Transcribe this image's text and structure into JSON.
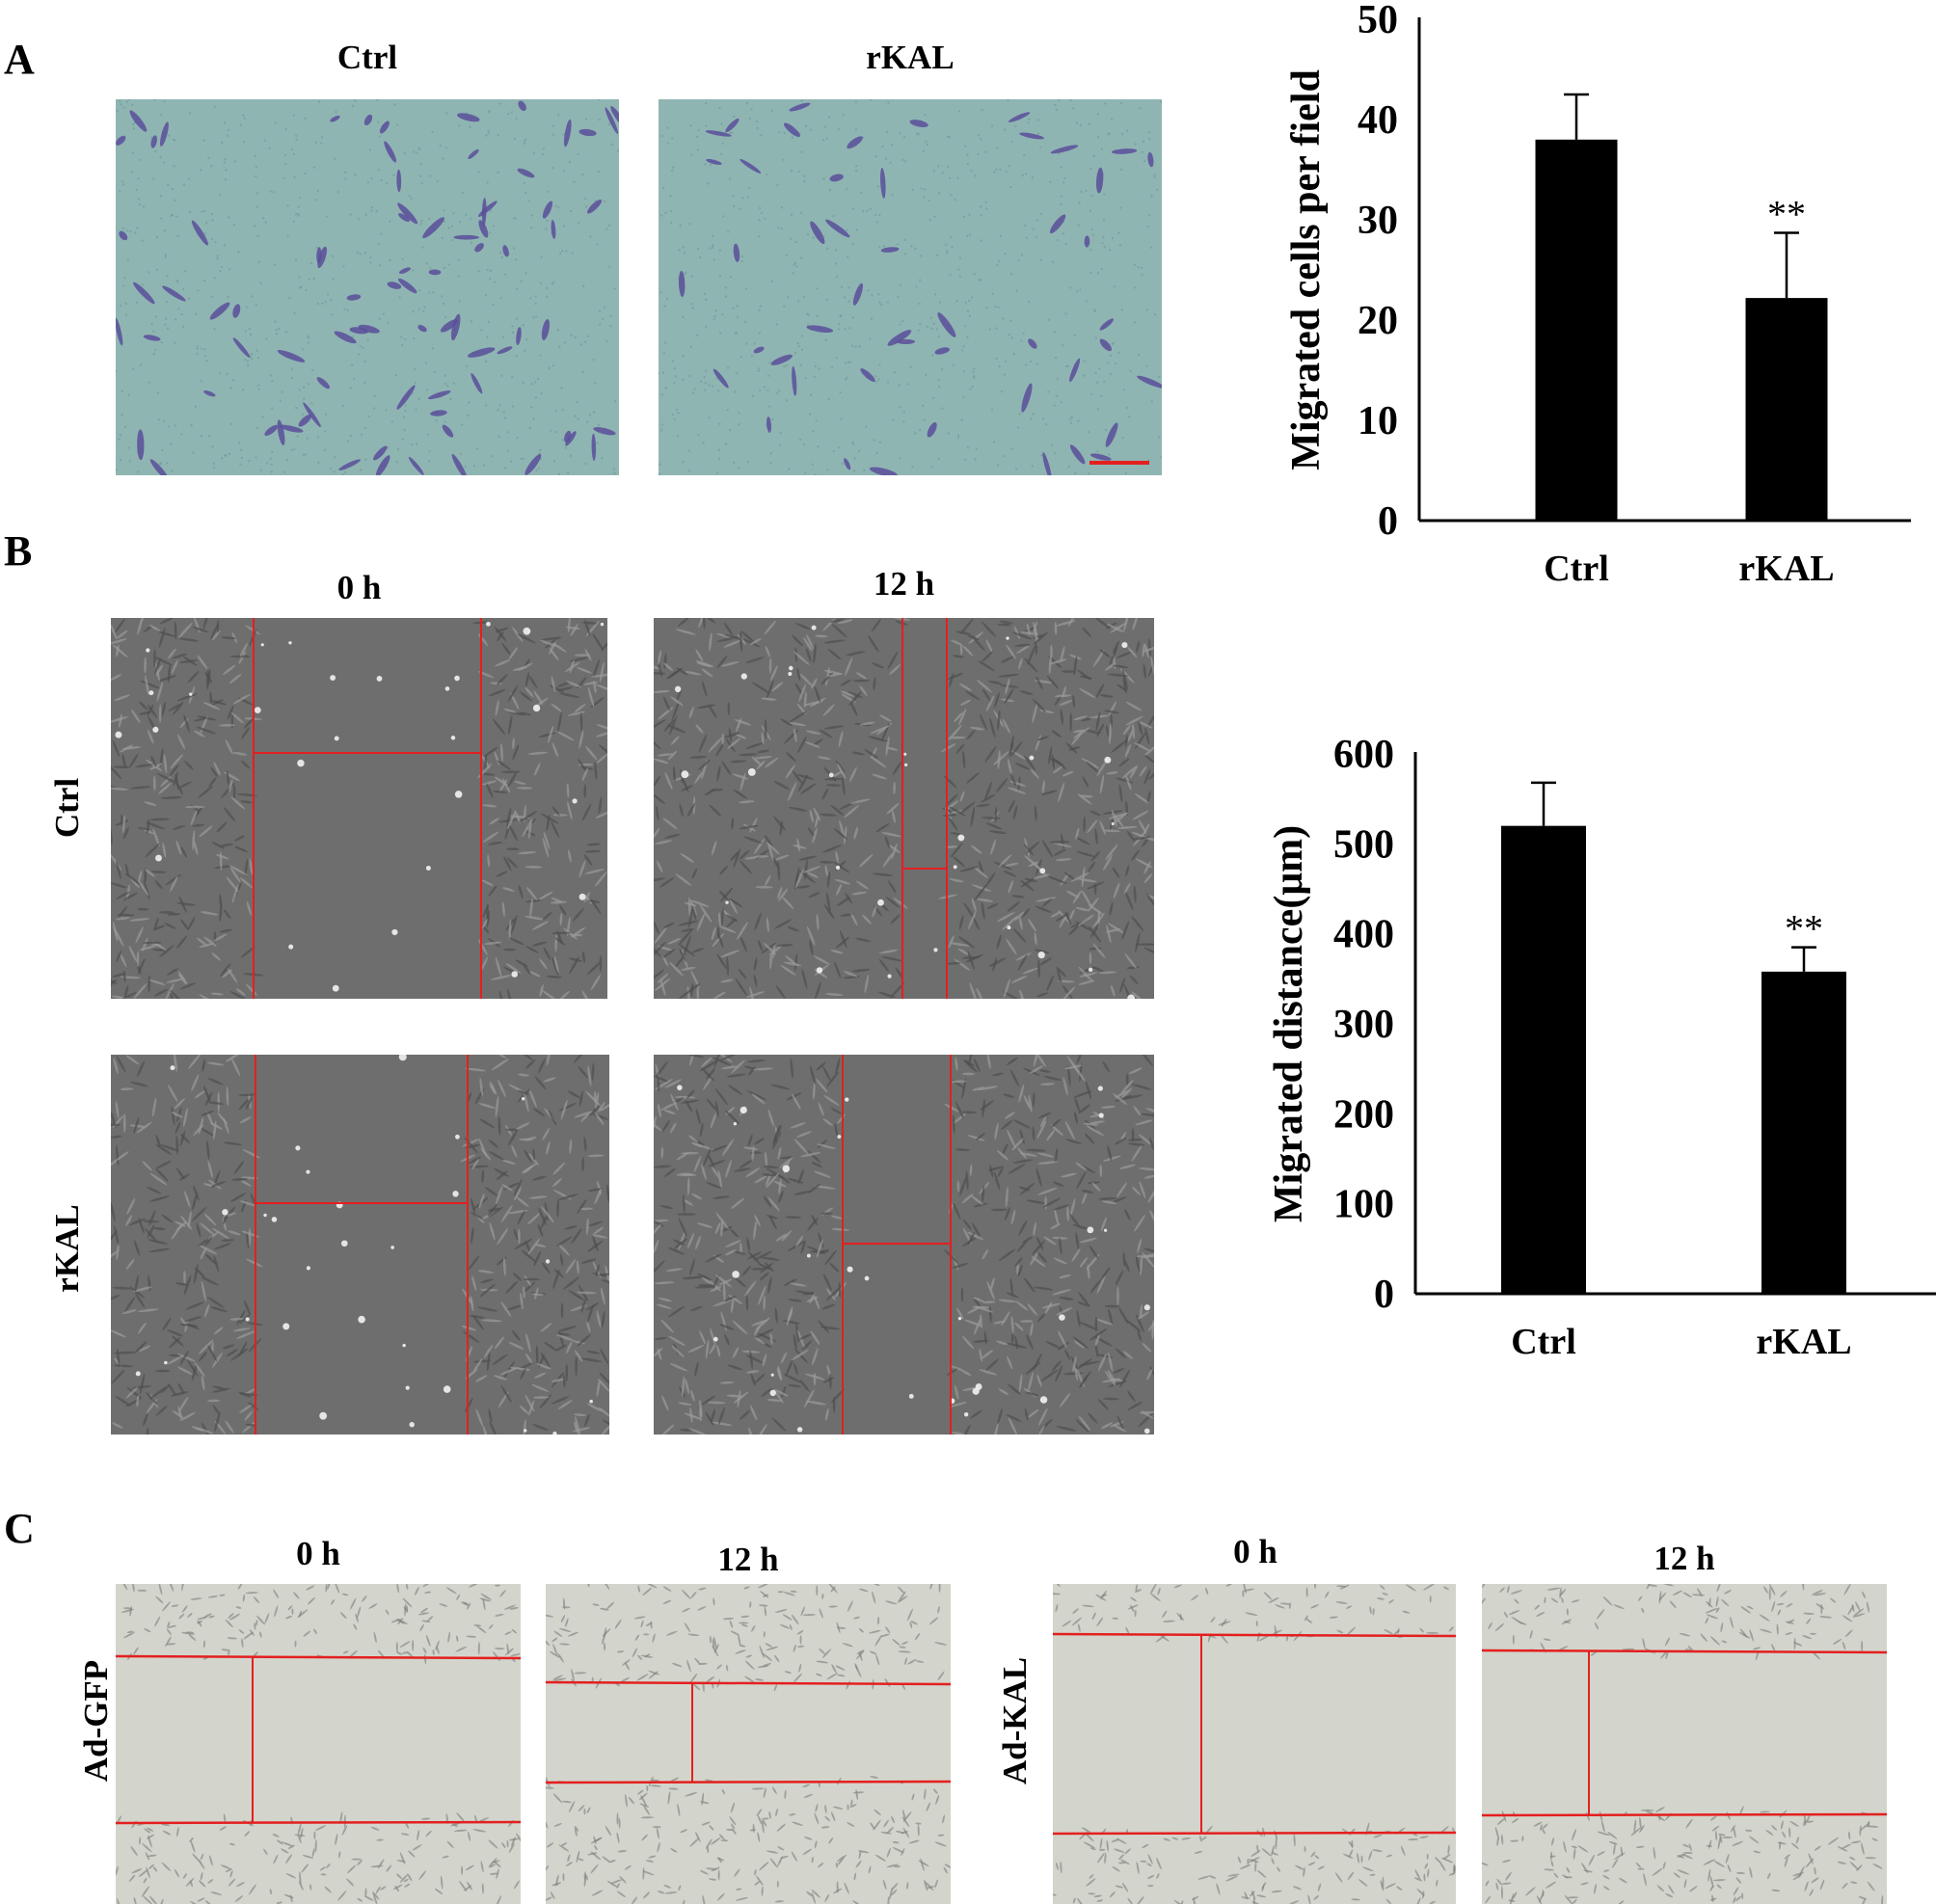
{
  "panels": {
    "a": {
      "letter": "A",
      "titles": [
        "Ctrl",
        "rKAL"
      ]
    },
    "b": {
      "letter": "B",
      "col_titles": [
        "0 h",
        "12 h"
      ],
      "row_labels": [
        "Ctrl",
        "rKAL"
      ]
    },
    "c": {
      "letter": "C",
      "col_titles": [
        "0 h",
        "12 h",
        "0 h",
        "12 h"
      ],
      "row_labels": [
        "Ad-GFP",
        "Ad-KAL"
      ]
    }
  },
  "chart_data": [
    {
      "type": "bar",
      "categories": [
        "Ctrl",
        "rKAL"
      ],
      "values": [
        38,
        22.2
      ],
      "errors": [
        4.5,
        6.5
      ],
      "annotations": [
        "",
        "**"
      ],
      "ylabel": "Migrated cells per field",
      "ylim": [
        0,
        50
      ],
      "yticks": [
        0,
        10,
        20,
        30,
        40,
        50
      ],
      "grid": false,
      "bar_color": "#000000"
    },
    {
      "type": "bar",
      "categories": [
        "Ctrl",
        "rKAL"
      ],
      "values": [
        520,
        358
      ],
      "errors": [
        48,
        27
      ],
      "annotations": [
        "",
        "**"
      ],
      "ylabel": "Migrated distance(μm)",
      "ylim": [
        0,
        600
      ],
      "yticks": [
        0,
        100,
        200,
        300,
        400,
        500,
        600
      ],
      "grid": false,
      "bar_color": "#000000"
    }
  ],
  "colors": {
    "stain_background": "#8fb5b3",
    "stain_cells": "#5b4f9a",
    "phase_background": "#6e6e6e",
    "brightfield_background": "#d3d5cc",
    "scratch_line": "#e41f1f",
    "scale_bar": "#e41f1f"
  }
}
